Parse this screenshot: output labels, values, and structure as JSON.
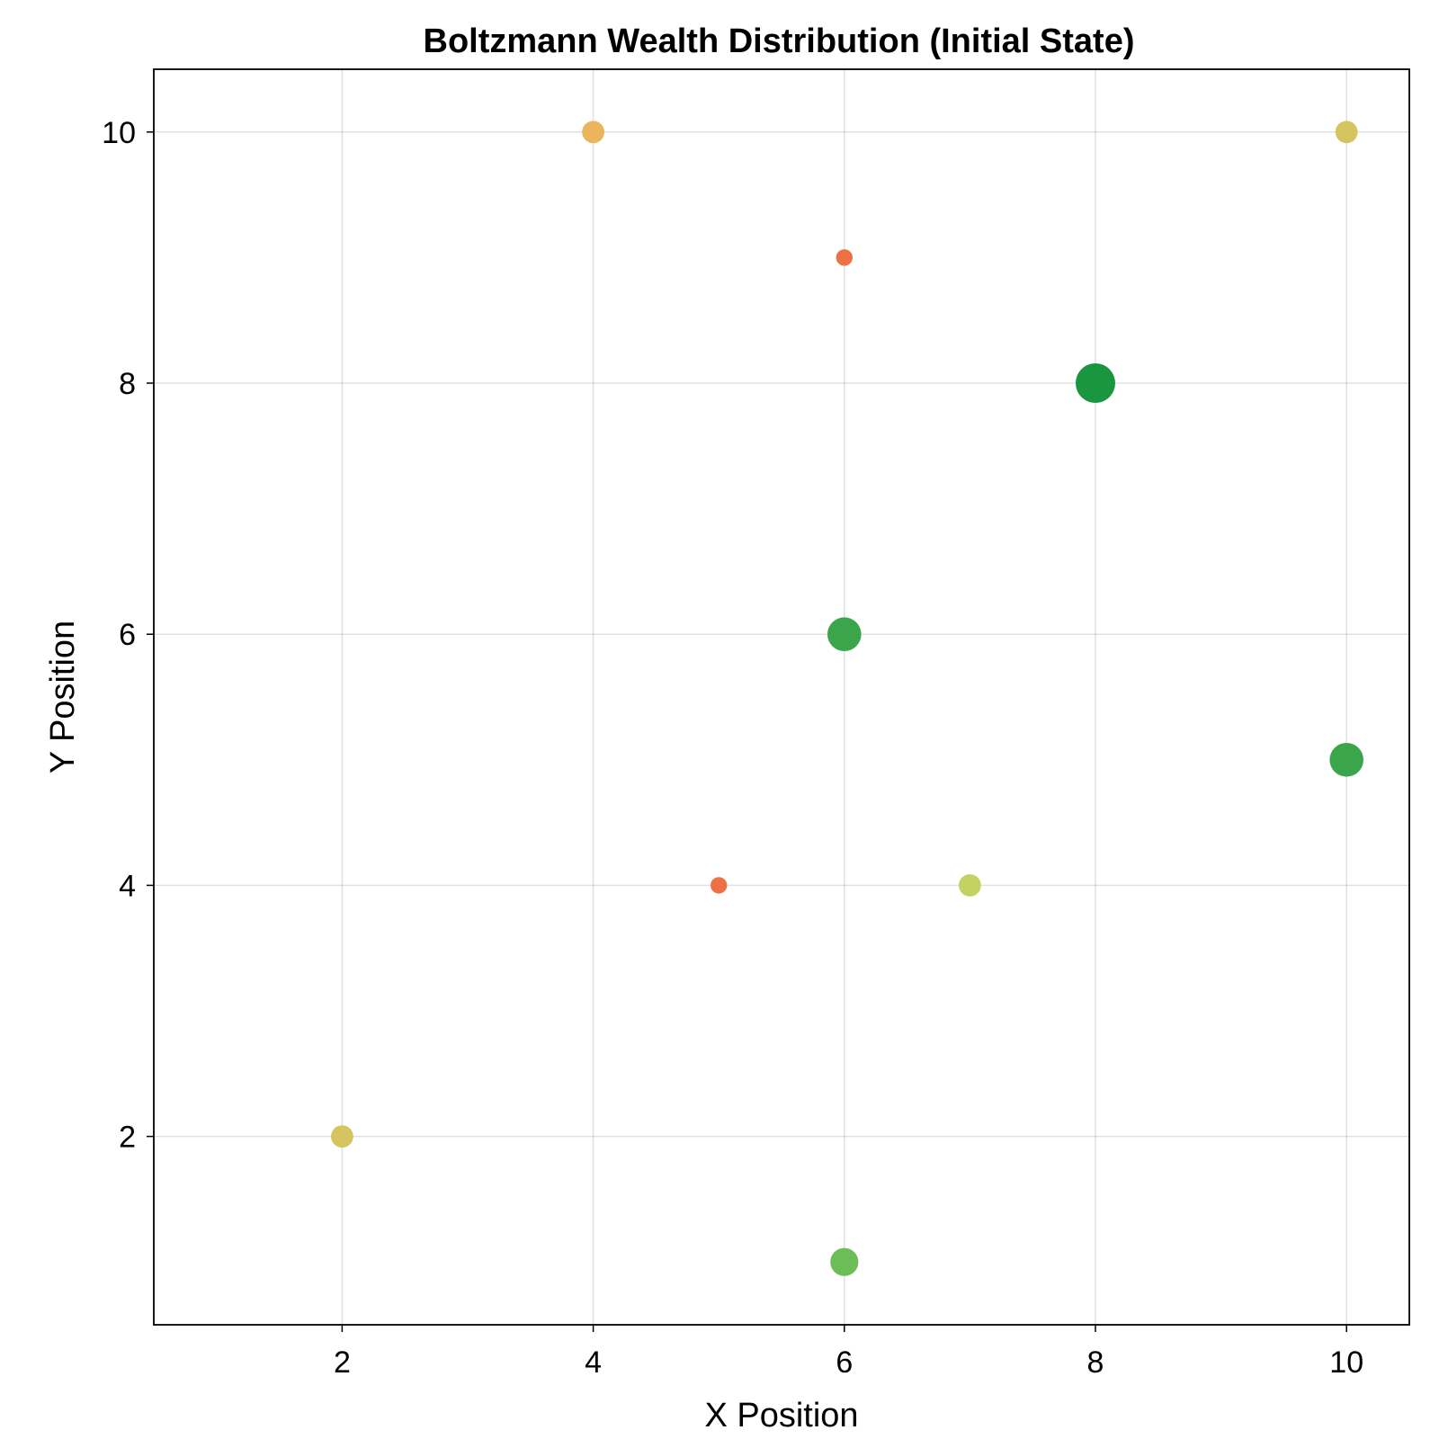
{
  "chart_data": {
    "type": "scatter",
    "title": "Boltzmann Wealth Distribution (Initial State)",
    "xlabel": "X Position",
    "ylabel": "Y Position",
    "xlim": [
      0.5,
      10.5
    ],
    "ylim": [
      0.5,
      10.5
    ],
    "xticks": [
      2,
      4,
      6,
      8,
      10
    ],
    "yticks": [
      2,
      4,
      6,
      8,
      10
    ],
    "grid": true,
    "points": [
      {
        "x": 4,
        "y": 10,
        "wealth": 2,
        "color": "#EBB55E"
      },
      {
        "x": 10,
        "y": 10,
        "wealth": 2,
        "color": "#D6C45E"
      },
      {
        "x": 6,
        "y": 9,
        "wealth": 1,
        "color": "#EE7146"
      },
      {
        "x": 8,
        "y": 8,
        "wealth": 5,
        "color": "#1A9641"
      },
      {
        "x": 6,
        "y": 6,
        "wealth": 4,
        "color": "#3BA54B"
      },
      {
        "x": 10,
        "y": 5,
        "wealth": 4,
        "color": "#3BA54B"
      },
      {
        "x": 5,
        "y": 4,
        "wealth": 1,
        "color": "#EE7146"
      },
      {
        "x": 7,
        "y": 4,
        "wealth": 2,
        "color": "#C4D262"
      },
      {
        "x": 2,
        "y": 2,
        "wealth": 2,
        "color": "#D6C45E"
      },
      {
        "x": 6,
        "y": 1,
        "wealth": 3,
        "color": "#6CBC57"
      }
    ]
  }
}
